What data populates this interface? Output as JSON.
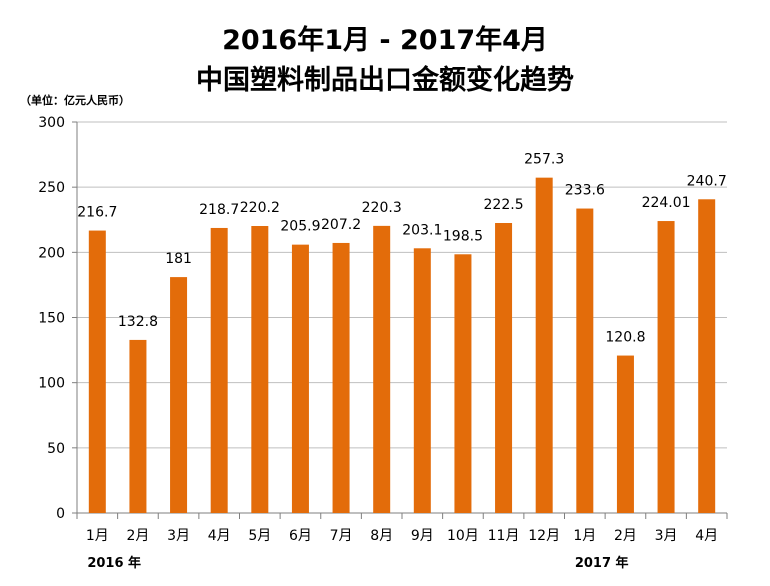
{
  "chart_data": {
    "type": "bar",
    "title_line1": "2016年1月 - 2017年4月",
    "title_line2": "中国塑料制品出口金额变化趋势",
    "unit_label": "（单位：亿元人民币）",
    "categories": [
      "1月",
      "2月",
      "3月",
      "4月",
      "5月",
      "6月",
      "7月",
      "8月",
      "9月",
      "10月",
      "11月",
      "12月",
      "1月",
      "2月",
      "3月",
      "4月"
    ],
    "values": [
      216.7,
      132.8,
      181,
      218.7,
      220.2,
      205.9,
      207.2,
      220.3,
      203.1,
      198.5,
      222.5,
      257.3,
      233.6,
      120.8,
      224.01,
      240.7
    ],
    "value_labels": [
      "216.7",
      "132.8",
      "181",
      "218.7",
      "220.2",
      "205.9",
      "207.2",
      "220.3",
      "203.1",
      "198.5",
      "222.5",
      "257.3",
      "233.6",
      "120.8",
      "224.01",
      "240.7"
    ],
    "year_labels": [
      {
        "text": "2016 年",
        "category_index": 0
      },
      {
        "text": "2017 年",
        "category_index": 12
      }
    ],
    "ylim": [
      0,
      300
    ],
    "yticks": [
      0,
      50,
      100,
      150,
      200,
      250,
      300
    ],
    "grid": true,
    "bar_color": "#E36C0A",
    "grid_color": "#BFBFBF",
    "axis_color": "#7F7F7F"
  }
}
